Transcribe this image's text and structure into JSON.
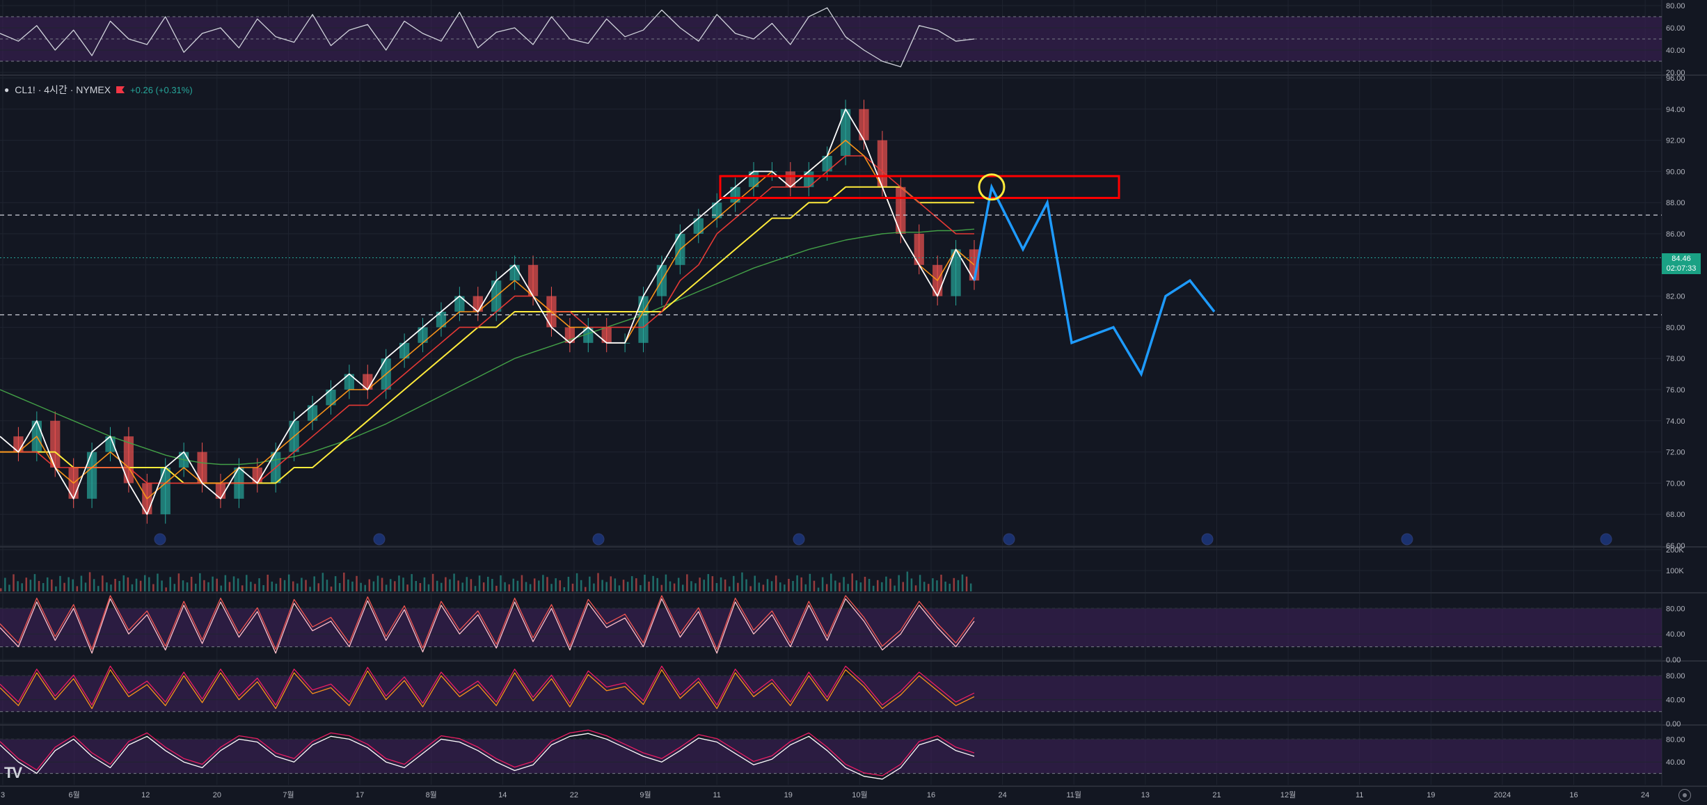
{
  "symbol": {
    "name": "CL1! · 4시간 · NYMEX",
    "change": "+0.26 (+0.31%)"
  },
  "last_price": {
    "price": "84.46",
    "countdown": "02:07:33",
    "value": 84.46
  },
  "colors": {
    "background": "#131722",
    "grid": "#1f2430",
    "text": "#b2b5be",
    "candle_up": "#26a69a",
    "candle_down": "#ef5350",
    "price_line": "#ffffff",
    "ma_fast": "#f7931a",
    "ma_mid": "#e53935",
    "ma_slow": "#ffeb3b",
    "ma_long": "#43a047",
    "osc_band": "#3c1f57",
    "projection": "#1e9bff",
    "zone_box": "#ff0000",
    "marker_circle": "#ffeb3b",
    "price_tag": "#1aa184"
  },
  "x_axis_labels": [
    "3",
    "6월",
    "12",
    "20",
    "7월",
    "17",
    "8월",
    "14",
    "22",
    "9월",
    "11",
    "19",
    "10월",
    "16",
    "24",
    "11월",
    "13",
    "21",
    "12월",
    "11",
    "19",
    "2024",
    "16",
    "24"
  ],
  "icons": [
    "settings-icon",
    "tradingview-logo",
    "calendar-event-icon"
  ],
  "chart_data": [
    {
      "type": "line",
      "title": "CL1! · 4시간 · NYMEX",
      "y_ticks": [
        "96.00",
        "94.00",
        "92.00",
        "90.00",
        "88.00",
        "86.00",
        "84.00",
        "82.00",
        "80.00",
        "78.00",
        "76.00",
        "74.00",
        "72.00",
        "70.00",
        "68.00",
        "66.00"
      ],
      "ylim": [
        66,
        96
      ],
      "series": [
        {
          "values": [
            73,
            72,
            74,
            71,
            69,
            72,
            73,
            70,
            68,
            71,
            72,
            70,
            69,
            71,
            70,
            72,
            74,
            75,
            76,
            77,
            76,
            78,
            79,
            80,
            81,
            82,
            81,
            83,
            84,
            82,
            80,
            79,
            80,
            79,
            79,
            82,
            84,
            86,
            87,
            88,
            89,
            90,
            90,
            89,
            90,
            91,
            94,
            92,
            89,
            86,
            84,
            82,
            85,
            83
          ]
        },
        {
          "values": [
            72,
            72,
            73,
            71,
            70,
            71,
            72,
            71,
            69,
            70,
            71,
            70,
            70,
            71,
            71,
            72,
            73,
            74,
            75,
            76,
            76,
            77,
            78,
            79,
            80,
            81,
            81,
            82,
            83,
            82,
            81,
            80,
            80,
            79,
            79,
            81,
            83,
            85,
            86,
            87,
            88,
            89,
            90,
            89,
            90,
            91,
            92,
            91,
            89,
            86,
            84,
            83,
            85,
            84
          ]
        },
        {
          "values": [
            72,
            72,
            72,
            71,
            71,
            71,
            71,
            71,
            70,
            70,
            70,
            70,
            70,
            70,
            70,
            71,
            72,
            73,
            74,
            75,
            75,
            76,
            77,
            78,
            79,
            80,
            80,
            81,
            82,
            82,
            81,
            81,
            80,
            80,
            80,
            80,
            81,
            83,
            84,
            86,
            87,
            88,
            89,
            89,
            89,
            90,
            91,
            91,
            90,
            89,
            88,
            87,
            86,
            86
          ]
        },
        {
          "values": [
            72,
            72,
            72,
            72,
            71,
            71,
            71,
            71,
            71,
            71,
            70,
            70,
            70,
            70,
            70,
            70,
            71,
            71,
            72,
            73,
            74,
            75,
            76,
            77,
            78,
            79,
            80,
            80,
            81,
            81,
            81,
            81,
            81,
            81,
            81,
            81,
            81,
            82,
            83,
            84,
            85,
            86,
            87,
            87,
            88,
            88,
            89,
            89,
            89,
            89,
            88,
            88,
            88,
            88
          ]
        },
        {
          "values": [
            76,
            75.5,
            75,
            74.5,
            74,
            73.5,
            73,
            72.6,
            72.2,
            71.8,
            71.5,
            71.3,
            71.2,
            71.2,
            71.3,
            71.5,
            71.7,
            72,
            72.4,
            72.8,
            73.3,
            73.8,
            74.4,
            75,
            75.6,
            76.2,
            76.8,
            77.4,
            78,
            78.4,
            78.8,
            79.2,
            79.6,
            80,
            80.4,
            80.8,
            81.3,
            81.8,
            82.3,
            82.8,
            83.3,
            83.8,
            84.2,
            84.6,
            85,
            85.3,
            85.6,
            85.8,
            86,
            86.1,
            86.1,
            86.2,
            86.2,
            86.3
          ]
        }
      ],
      "horizontal_lines": [
        87.2,
        80.8
      ],
      "zone": {
        "low": 88.3,
        "high": 89.7
      },
      "projection": [
        89,
        85,
        88,
        79,
        80,
        77,
        82,
        83,
        81
      ]
    },
    {
      "type": "line",
      "y_ticks": [
        "80.00",
        "60.00",
        "40.00",
        "20.00"
      ],
      "ylim": [
        20,
        80
      ],
      "values": [
        55,
        48,
        62,
        40,
        58,
        35,
        66,
        50,
        45,
        70,
        38,
        55,
        60,
        42,
        68,
        52,
        47,
        72,
        44,
        58,
        63,
        40,
        66,
        55,
        48,
        74,
        42,
        56,
        60,
        45,
        70,
        50,
        46,
        68,
        52,
        58,
        76,
        60,
        48,
        72,
        55,
        50,
        64,
        45,
        70,
        78,
        52,
        40,
        30,
        25,
        62,
        58,
        48,
        50
      ]
    },
    {
      "type": "bar",
      "y_ticks": [
        "200K",
        "100K"
      ],
      "ylim": [
        0,
        200
      ]
    },
    {
      "type": "line",
      "y_ticks": [
        "80.00",
        "40.00",
        "0.00"
      ],
      "ylim": [
        0,
        100
      ],
      "values": [
        50,
        20,
        90,
        30,
        80,
        10,
        95,
        40,
        70,
        15,
        85,
        25,
        90,
        35,
        75,
        10,
        88,
        45,
        60,
        20,
        92,
        30,
        78,
        12,
        85,
        40,
        70,
        18,
        90,
        28,
        80,
        15,
        88,
        50,
        65,
        20,
        95,
        35,
        75,
        10,
        90,
        40,
        70,
        20,
        85,
        30,
        95,
        60,
        15,
        40,
        85,
        50,
        20,
        60
      ]
    },
    {
      "type": "line",
      "y_ticks": [
        "80.00",
        "40.00",
        "0.00"
      ],
      "ylim": [
        0,
        100
      ],
      "values": [
        60,
        30,
        85,
        40,
        75,
        25,
        90,
        45,
        65,
        30,
        80,
        35,
        85,
        40,
        70,
        25,
        85,
        50,
        60,
        30,
        88,
        40,
        72,
        28,
        80,
        45,
        65,
        30,
        85,
        38,
        75,
        28,
        82,
        55,
        62,
        32,
        90,
        42,
        70,
        25,
        85,
        45,
        68,
        30,
        80,
        38,
        90,
        62,
        25,
        48,
        80,
        55,
        30,
        45
      ]
    },
    {
      "type": "line",
      "y_ticks": [
        "80.00",
        "40.00"
      ],
      "ylim": [
        0,
        100
      ],
      "values": [
        70,
        40,
        20,
        60,
        80,
        50,
        30,
        70,
        85,
        60,
        40,
        30,
        60,
        80,
        75,
        50,
        40,
        70,
        85,
        80,
        65,
        40,
        30,
        55,
        80,
        75,
        60,
        40,
        25,
        35,
        70,
        85,
        90,
        80,
        65,
        50,
        40,
        60,
        82,
        75,
        55,
        35,
        45,
        70,
        85,
        60,
        30,
        15,
        10,
        30,
        70,
        80,
        60,
        50
      ]
    }
  ]
}
